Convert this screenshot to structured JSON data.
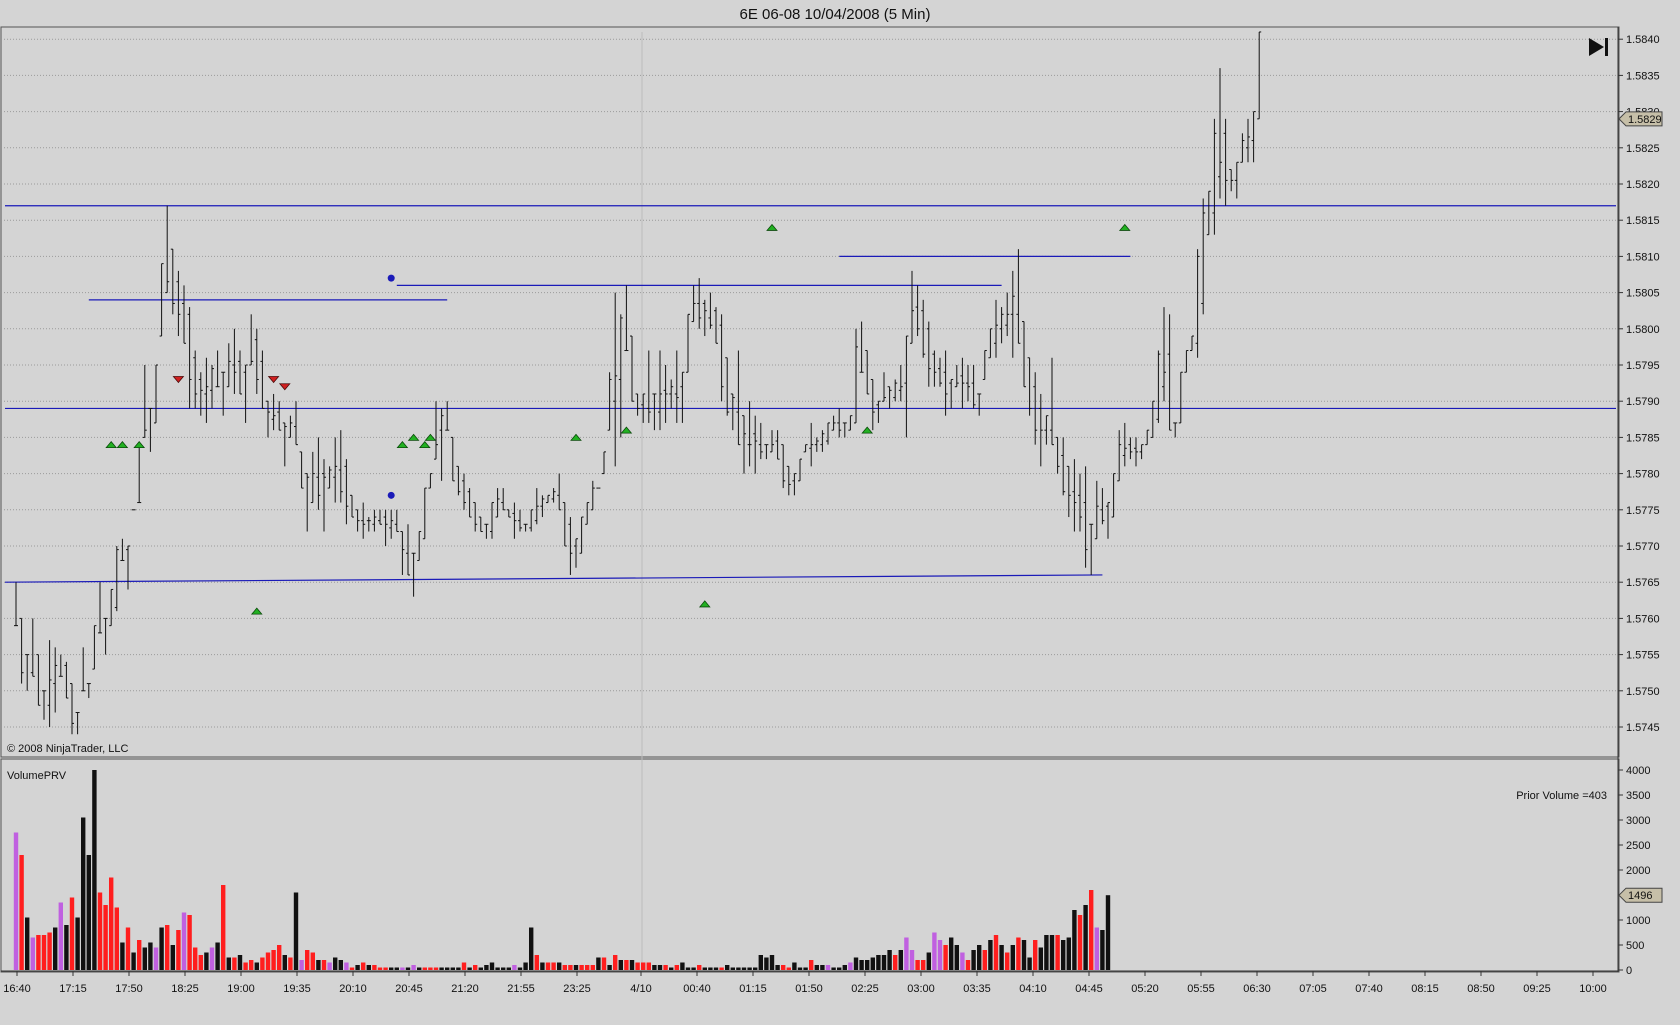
{
  "chart_title": "6E 06-08  10/04/2008 (5 Min)",
  "copyright": "© 2008 NinjaTrader, LLC",
  "play_icon": "play-to-end-icon",
  "chart_data": [
    {
      "type": "bar",
      "style": "OHLC",
      "instrument": "6E 06-08",
      "interval": "5 Min",
      "ylim": [
        1.5742,
        1.5842
      ],
      "y_ticks": [
        "1.5745",
        "1.5750",
        "1.5755",
        "1.5760",
        "1.5765",
        "1.5770",
        "1.5775",
        "1.5780",
        "1.5785",
        "1.5790",
        "1.5795",
        "1.5800",
        "1.5805",
        "1.5810",
        "1.5815",
        "1.5820",
        "1.5825",
        "1.5830",
        "1.5835",
        "1.5840"
      ],
      "x_ticks": [
        "16:40",
        "17:15",
        "17:50",
        "18:25",
        "19:00",
        "19:35",
        "20:10",
        "20:45",
        "21:20",
        "21:55",
        "23:25",
        "4/10",
        "00:40",
        "01:15",
        "01:50",
        "02:25",
        "03:00",
        "03:35",
        "04:10",
        "04:45",
        "05:20",
        "05:55",
        "06:30",
        "07:05",
        "07:40",
        "08:15",
        "08:50",
        "09:25",
        "10:00"
      ],
      "grid": true,
      "last_price": "1.5829",
      "bars_high": [
        1.5765,
        1.576,
        1.5755,
        1.576,
        1.5755,
        1.575,
        1.5757,
        1.5756,
        1.5755,
        1.5754,
        1.5751,
        1.5747,
        1.5756,
        1.5751,
        1.5759,
        1.5765,
        1.576,
        1.5764,
        1.577,
        1.5771,
        1.577,
        1.5775,
        1.5776,
        1.5795,
        1.5789,
        1.5795,
        1.5809,
        1.5817,
        1.5811,
        1.5808,
        1.5806,
        1.5803,
        1.5797,
        1.5794,
        1.5796,
        1.5795,
        1.5797,
        1.5794,
        1.5798,
        1.58,
        1.5797,
        1.5795,
        1.5802,
        1.58,
        1.5797,
        1.579,
        1.5791,
        1.579,
        1.5787,
        1.5788,
        1.579,
        1.5783,
        1.578,
        1.5783,
        1.5785,
        1.5782,
        1.5781,
        1.5785,
        1.5786,
        1.5782,
        1.5777,
        1.5775,
        1.5776,
        1.5774,
        1.5775,
        1.5775,
        1.5775,
        1.5775,
        1.5775,
        1.5772,
        1.5773,
        1.5769,
        1.5772,
        1.5778,
        1.578,
        1.579,
        1.5789,
        1.579,
        1.5785,
        1.5781,
        1.578,
        1.5778,
        1.5776,
        1.5774,
        1.5773,
        1.5776,
        1.5778,
        1.5778,
        1.5775,
        1.5776,
        1.5775,
        1.5773,
        1.5775,
        1.5778,
        1.5777,
        1.5777,
        1.5778,
        1.578,
        1.5776,
        1.5774,
        1.5771,
        1.5774,
        1.5776,
        1.5779,
        1.5778,
        1.5783,
        1.5794,
        1.5805,
        1.5802,
        1.5806,
        1.5799,
        1.5791,
        1.5791,
        1.5797,
        1.5791,
        1.5797,
        1.5795,
        1.5793,
        1.5797,
        1.5794,
        1.5802,
        1.5806,
        1.5807,
        1.5804,
        1.5805,
        1.5803,
        1.5802,
        1.5796,
        1.5791,
        1.5797,
        1.5788,
        1.579,
        1.5788,
        1.5787,
        1.5784,
        1.5786,
        1.5786,
        1.5784,
        1.5781,
        1.578,
        1.5782,
        1.5784,
        1.5787,
        1.5785,
        1.5786,
        1.5787,
        1.5788,
        1.5789,
        1.5787,
        1.5788,
        1.58,
        1.5801,
        1.5797,
        1.5793,
        1.579,
        1.5794,
        1.5792,
        1.5793,
        1.5795,
        1.5799,
        1.5808,
        1.5806,
        1.5804,
        1.5801,
        1.5797,
        1.5796,
        1.5797,
        1.5793,
        1.5795,
        1.5796,
        1.5795,
        1.5795,
        1.5791,
        1.5797,
        1.58,
        1.5804,
        1.5803,
        1.5805,
        1.5808,
        1.5811,
        1.5801,
        1.5796,
        1.5794,
        1.5791,
        1.5788,
        1.5796,
        1.5785,
        1.5785,
        1.5781,
        1.5782,
        1.578,
        1.5781,
        1.5773,
        1.5779,
        1.5778,
        1.5776,
        1.578,
        1.5786,
        1.5787,
        1.5785,
        1.5785,
        1.5784,
        1.5786,
        1.579,
        1.5797,
        1.5803,
        1.5802,
        1.5787,
        1.5794,
        1.5797,
        1.5799,
        1.5811,
        1.5818,
        1.5819,
        1.5829,
        1.5836,
        1.5829,
        1.5822,
        1.5823,
        1.5827,
        1.5829,
        1.583,
        1.5841
      ],
      "bars_low": [
        1.5759,
        1.5751,
        1.575,
        1.5752,
        1.5748,
        1.5746,
        1.5745,
        1.5747,
        1.5752,
        1.5749,
        1.5744,
        1.5744,
        1.575,
        1.5749,
        1.5753,
        1.5758,
        1.5755,
        1.5759,
        1.5761,
        1.5768,
        1.5764,
        1.5775,
        1.5784,
        1.5785,
        1.5783,
        1.5787,
        1.5799,
        1.5805,
        1.5802,
        1.5799,
        1.5798,
        1.5789,
        1.5789,
        1.5788,
        1.5787,
        1.5789,
        1.5792,
        1.5788,
        1.5792,
        1.5791,
        1.5791,
        1.5787,
        1.5795,
        1.5791,
        1.5789,
        1.5785,
        1.5786,
        1.5786,
        1.5781,
        1.5785,
        1.5784,
        1.5778,
        1.5772,
        1.5776,
        1.5775,
        1.5772,
        1.5778,
        1.5776,
        1.5776,
        1.5773,
        1.5774,
        1.5772,
        1.5771,
        1.5772,
        1.5772,
        1.5773,
        1.577,
        1.5771,
        1.5772,
        1.5766,
        1.5766,
        1.5763,
        1.5768,
        1.5771,
        1.5778,
        1.5782,
        1.5779,
        1.5786,
        1.5779,
        1.5777,
        1.5775,
        1.5774,
        1.5772,
        1.5772,
        1.5771,
        1.5771,
        1.5774,
        1.5775,
        1.5774,
        1.5771,
        1.5772,
        1.5772,
        1.5772,
        1.5773,
        1.5774,
        1.5776,
        1.5776,
        1.5775,
        1.577,
        1.5766,
        1.5767,
        1.5769,
        1.5773,
        1.5775,
        1.5778,
        1.578,
        1.5786,
        1.5781,
        1.5785,
        1.5797,
        1.579,
        1.5788,
        1.5787,
        1.5787,
        1.5786,
        1.5786,
        1.5787,
        1.5789,
        1.5787,
        1.5787,
        1.5794,
        1.5801,
        1.58,
        1.5799,
        1.58,
        1.5798,
        1.579,
        1.5788,
        1.5786,
        1.5784,
        1.578,
        1.5781,
        1.578,
        1.5782,
        1.5782,
        1.5783,
        1.5782,
        1.5778,
        1.5777,
        1.5777,
        1.5779,
        1.5783,
        1.5781,
        1.5783,
        1.5783,
        1.5784,
        1.5786,
        1.5785,
        1.5785,
        1.5786,
        1.5787,
        1.5794,
        1.5791,
        1.5786,
        1.5787,
        1.579,
        1.5789,
        1.579,
        1.579,
        1.5785,
        1.5798,
        1.5799,
        1.5796,
        1.5792,
        1.5792,
        1.5792,
        1.5788,
        1.5789,
        1.5792,
        1.5789,
        1.579,
        1.5789,
        1.5788,
        1.5793,
        1.5796,
        1.5796,
        1.5798,
        1.5799,
        1.5796,
        1.5798,
        1.5792,
        1.5788,
        1.5784,
        1.5781,
        1.5784,
        1.5784,
        1.578,
        1.5777,
        1.5774,
        1.5772,
        1.5772,
        1.5767,
        1.5766,
        1.5771,
        1.5773,
        1.5771,
        1.5774,
        1.5779,
        1.5781,
        1.5782,
        1.5781,
        1.5782,
        1.5784,
        1.5785,
        1.5787,
        1.579,
        1.5786,
        1.5785,
        1.5787,
        1.5794,
        1.5797,
        1.5796,
        1.5802,
        1.5813,
        1.5813,
        1.5818,
        1.5817,
        1.5819,
        1.5818,
        1.5823,
        1.5823,
        1.5823,
        1.5829
      ],
      "signals_up": [
        [
          17,
          1.5784
        ],
        [
          19,
          1.5784
        ],
        [
          22,
          1.5784
        ],
        [
          43,
          1.5761
        ],
        [
          69,
          1.5784
        ],
        [
          71,
          1.5785
        ],
        [
          73,
          1.5784
        ],
        [
          74,
          1.5785
        ],
        [
          100,
          1.5785
        ],
        [
          109,
          1.5786
        ],
        [
          123,
          1.5762
        ],
        [
          135,
          1.5814
        ],
        [
          152,
          1.5786
        ],
        [
          198,
          1.5814
        ]
      ],
      "signals_down": [
        [
          29,
          1.5793
        ],
        [
          46,
          1.5793
        ],
        [
          48,
          1.5792
        ]
      ],
      "signals_dot": [
        [
          67,
          1.5807
        ],
        [
          67,
          1.5777
        ]
      ],
      "horizontal_lines": [
        {
          "from": 0,
          "to": 200,
          "y1": 1.5817,
          "y2": 1.5817
        },
        {
          "from": 0,
          "to": 200,
          "y1": 1.5789,
          "y2": 1.5789
        },
        {
          "from": 0,
          "to": 194,
          "y1": 1.5765,
          "y2": 1.5766
        },
        {
          "from": 13,
          "to": 77,
          "y1": 1.5804,
          "y2": 1.5804
        },
        {
          "from": 68,
          "to": 176,
          "y1": 1.5806,
          "y2": 1.5806
        },
        {
          "from": 147,
          "to": 199,
          "y1": 1.581,
          "y2": 1.581
        }
      ]
    },
    {
      "type": "bar",
      "name": "VolumePRV",
      "annotation": "Prior Volume =403",
      "last_value": "1496",
      "ylim": [
        0,
        4100
      ],
      "y_ticks": [
        "0",
        "500",
        "1000",
        "1500",
        "2000",
        "2500",
        "3000",
        "3500",
        "4000"
      ],
      "values": [
        2750,
        2300,
        1050,
        650,
        700,
        700,
        750,
        850,
        1350,
        900,
        1450,
        1050,
        3050,
        2300,
        4000,
        1550,
        1300,
        1850,
        1250,
        550,
        850,
        350,
        600,
        450,
        550,
        450,
        850,
        900,
        500,
        800,
        1150,
        1100,
        450,
        300,
        350,
        450,
        550,
        1700,
        250,
        250,
        300,
        150,
        200,
        150,
        250,
        350,
        400,
        500,
        300,
        250,
        1550,
        200,
        400,
        350,
        200,
        200,
        150,
        250,
        200,
        150,
        50,
        100,
        150,
        100,
        100,
        50,
        50,
        50,
        50,
        50,
        50,
        100,
        50,
        50,
        50,
        50,
        50,
        50,
        50,
        50,
        150,
        50,
        100,
        50,
        100,
        150,
        50,
        50,
        50,
        100,
        50,
        150,
        850,
        300,
        150,
        150,
        150,
        150,
        100,
        100,
        100,
        100,
        100,
        100,
        250,
        250,
        100,
        300,
        200,
        200,
        200,
        150,
        150,
        150,
        100,
        100,
        100,
        50,
        100,
        150,
        50,
        50,
        100,
        50,
        50,
        50,
        50,
        100,
        50,
        50,
        50,
        50,
        50,
        300,
        250,
        300,
        100,
        100,
        50,
        150,
        50,
        50,
        200,
        100,
        100,
        100,
        50,
        50,
        100,
        150,
        250,
        200,
        200,
        250,
        300,
        300,
        400,
        300,
        400,
        650,
        400,
        200,
        200,
        350,
        750,
        600,
        500,
        650,
        500,
        350,
        200,
        400,
        500,
        400,
        600,
        700,
        500,
        350,
        500,
        650,
        600,
        250,
        600,
        450,
        700,
        700,
        700,
        600,
        650,
        1200,
        1100,
        1300,
        1600,
        850,
        800,
        1496
      ],
      "colors": [
        "#c060e0",
        "#ff1e1e",
        "#111111",
        "#c060e0",
        "#ff1e1e",
        "#ff1e1e",
        "#ff1e1e",
        "#111111",
        "#c060e0",
        "#111111",
        "#ff1e1e",
        "#111111",
        "#111111",
        "#111111",
        "#111111",
        "#ff1e1e",
        "#ff1e1e",
        "#ff1e1e",
        "#ff1e1e",
        "#111111",
        "#ff1e1e",
        "#111111",
        "#ff1e1e",
        "#111111",
        "#111111",
        "#c060e0",
        "#111111",
        "#ff1e1e",
        "#111111",
        "#ff1e1e",
        "#c060e0",
        "#ff1e1e",
        "#ff1e1e",
        "#ff1e1e",
        "#111111",
        "#c060e0",
        "#111111",
        "#ff1e1e",
        "#111111",
        "#ff1e1e",
        "#111111",
        "#ff1e1e",
        "#ff1e1e",
        "#111111",
        "#ff1e1e",
        "#ff1e1e",
        "#ff1e1e",
        "#ff1e1e",
        "#111111",
        "#ff1e1e",
        "#111111",
        "#c060e0",
        "#ff1e1e",
        "#ff1e1e",
        "#111111",
        "#ff1e1e",
        "#c060e0",
        "#111111",
        "#111111",
        "#c060e0",
        "#ff1e1e",
        "#111111",
        "#ff1e1e",
        "#111111",
        "#ff1e1e",
        "#ff1e1e",
        "#ff1e1e",
        "#111111",
        "#111111",
        "#c060e0",
        "#111111",
        "#c060e0",
        "#111111",
        "#ff1e1e",
        "#ff1e1e",
        "#ff1e1e",
        "#111111",
        "#111111",
        "#111111",
        "#111111",
        "#ff1e1e",
        "#111111",
        "#ff1e1e",
        "#111111",
        "#111111",
        "#111111",
        "#111111",
        "#111111",
        "#111111",
        "#c060e0",
        "#111111",
        "#111111",
        "#111111",
        "#ff1e1e",
        "#111111",
        "#ff1e1e",
        "#ff1e1e",
        "#111111",
        "#ff1e1e",
        "#ff1e1e",
        "#111111",
        "#ff1e1e",
        "#ff1e1e",
        "#ff1e1e",
        "#111111",
        "#ff1e1e",
        "#111111",
        "#ff1e1e",
        "#111111",
        "#ff1e1e",
        "#111111",
        "#ff1e1e",
        "#ff1e1e",
        "#ff1e1e",
        "#111111",
        "#111111",
        "#ff1e1e",
        "#111111",
        "#ff1e1e",
        "#111111",
        "#111111",
        "#111111",
        "#ff1e1e",
        "#111111",
        "#111111",
        "#111111",
        "#ff1e1e",
        "#111111",
        "#111111",
        "#111111",
        "#111111",
        "#111111",
        "#111111",
        "#111111",
        "#111111",
        "#111111",
        "#111111",
        "#ff1e1e",
        "#ff1e1e",
        "#111111",
        "#111111",
        "#111111",
        "#ff1e1e",
        "#111111",
        "#111111",
        "#c060e0",
        "#111111",
        "#111111",
        "#111111",
        "#c060e0",
        "#111111",
        "#111111",
        "#111111",
        "#111111",
        "#111111",
        "#111111",
        "#111111",
        "#ff1e1e",
        "#111111",
        "#c060e0",
        "#c060e0",
        "#ff1e1e",
        "#ff1e1e",
        "#111111",
        "#c060e0",
        "#c060e0",
        "#ff1e1e",
        "#111111",
        "#111111",
        "#c060e0",
        "#ff1e1e",
        "#111111",
        "#111111",
        "#ff1e1e",
        "#111111",
        "#ff1e1e",
        "#111111",
        "#ff1e1e",
        "#111111",
        "#ff1e1e",
        "#111111",
        "#111111",
        "#ff1e1e",
        "#111111",
        "#111111",
        "#111111",
        "#ff1e1e",
        "#111111",
        "#111111",
        "#111111",
        "#ff1e1e",
        "#111111",
        "#ff1e1e",
        "#c060e0",
        "#111111",
        "#111111",
        "#111111",
        "#ff1e1e",
        "#ff1e1e",
        "#111111",
        "#c060e0",
        "#111111"
      ]
    }
  ]
}
